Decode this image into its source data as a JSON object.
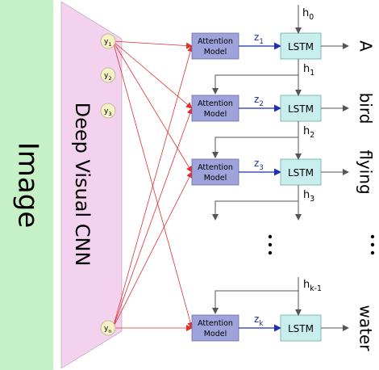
{
  "image_label": "Image",
  "cnn_label": "Deep Visual CNN",
  "feature_labels": [
    {
      "base": "y",
      "sub": "1"
    },
    {
      "base": "y",
      "sub": "2"
    },
    {
      "base": "y",
      "sub": "3"
    },
    {
      "base": "y",
      "sub": "n"
    }
  ],
  "attention_label_line1": "Attention",
  "attention_label_line2": "Model",
  "lstm_label": "LSTM",
  "steps": [
    {
      "z": {
        "base": "z",
        "sub": "1"
      },
      "word": "A"
    },
    {
      "z": {
        "base": "z",
        "sub": "2"
      },
      "word": "bird"
    },
    {
      "z": {
        "base": "z",
        "sub": "3"
      },
      "word": "flying"
    },
    {
      "z": {
        "base": "z",
        "sub": "k"
      },
      "word": "water"
    }
  ],
  "hidden_labels": [
    {
      "base": "h",
      "sub": "0"
    },
    {
      "base": "h",
      "sub": "1"
    },
    {
      "base": "h",
      "sub": "2"
    },
    {
      "base": "h",
      "sub": "3"
    },
    {
      "base": "h",
      "sub": "k-1"
    }
  ],
  "colors": {
    "image_fill": "#c6f0c6",
    "cnn_fill": "#f3d2ef",
    "feature_fill": "#f6f2c6",
    "attention_fill": "#9fa3dc",
    "lstm_fill": "#c8eeee",
    "attention_arrow": "#e03030",
    "z_arrow": "#1f2fb0",
    "z_text": "#1f2fb0"
  }
}
